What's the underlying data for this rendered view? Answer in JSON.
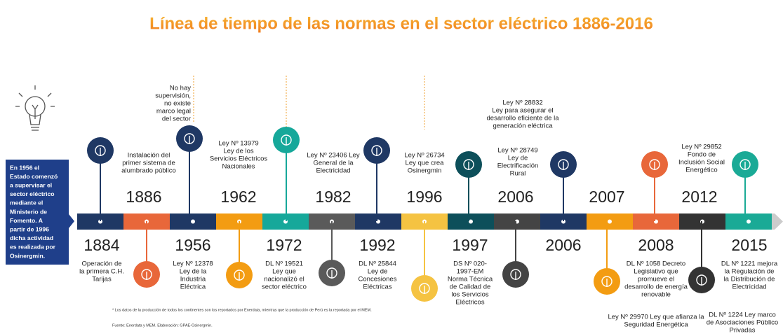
{
  "title": "Línea de tiempo de las normas en el sector eléctrico 1886-2016",
  "sidebar": [
    "En 1956 el",
    "Estado comenzó",
    "a supervisar el",
    "sector eléctrico",
    "mediante el",
    "Ministerio de",
    "Fomento. A",
    "partir de 1996",
    "dicha actividad",
    "es realizada por",
    "Osinergmin."
  ],
  "years": [
    "1886",
    "1962",
    "1982",
    "1996",
    "2006",
    "2007",
    "2012",
    "1884",
    "1956",
    "1972",
    "1992",
    "1997",
    "2006",
    "2008",
    "2015"
  ],
  "texts": [
    [
      "No hay",
      "supervisión,",
      "no existe",
      "marco legal",
      "del sector"
    ],
    [
      "Instalación del",
      "primer sistema de",
      "alumbrado público"
    ],
    [
      "Ley Nº 13979",
      "Ley de los",
      "Servicios Eléctricos",
      "Nacionales"
    ],
    [
      "Ley Nº 23406 Ley",
      "General de la",
      "Electricidad"
    ],
    [
      "Ley Nº 26734",
      "Ley que crea",
      "Osinergmin"
    ],
    [
      "Ley Nº 28832",
      "Ley para asegurar el",
      "desarrollo eficiente de la",
      "generación eléctrica"
    ],
    [
      "Ley Nº 28749",
      "Ley de",
      "Electrificación",
      "Rural"
    ],
    [
      "Ley Nº 29852",
      "Fondo de",
      "Inclusión Social",
      "Energético"
    ],
    [
      "Operación de",
      "la primera C.H.",
      "Tarijas"
    ],
    [
      "Ley Nº 12378",
      "Ley de la",
      "Industria",
      "Eléctrica"
    ],
    [
      "DL Nº 19521",
      "Ley que",
      "nacionalizó el",
      "sector eléctrico"
    ],
    [
      "DL Nº 25844",
      "Ley de",
      "Concesiones",
      "Eléctricas"
    ],
    [
      "DS Nº 020-",
      "1997-EM",
      "Norma Técnica",
      "de Calidad de",
      "los Servicios",
      "Eléctricos"
    ],
    [
      "DL Nº 1058 Decreto",
      "Legislativo que",
      "promueve el",
      "desarrollo de energía",
      "renovable"
    ],
    [
      "Ley Nº 29970  Ley que afianza la",
      "Seguridad Energética"
    ],
    [
      "DL Nº 1221 mejora",
      "la Regulación de",
      "la Distribución de",
      "Electricidad"
    ],
    [
      "DL Nº 1224 Ley marco",
      "de Asociaciones Público",
      "Privadas"
    ]
  ],
  "footnotes": [
    "* Los datos de la producción de todos los continentes son los reportados por Enerdata, mientras que la producción de Perú es la reportada por el MEM.",
    "Fuente: Enerdata y MEM. Elaboración: GPAE-Osinergmin."
  ]
}
